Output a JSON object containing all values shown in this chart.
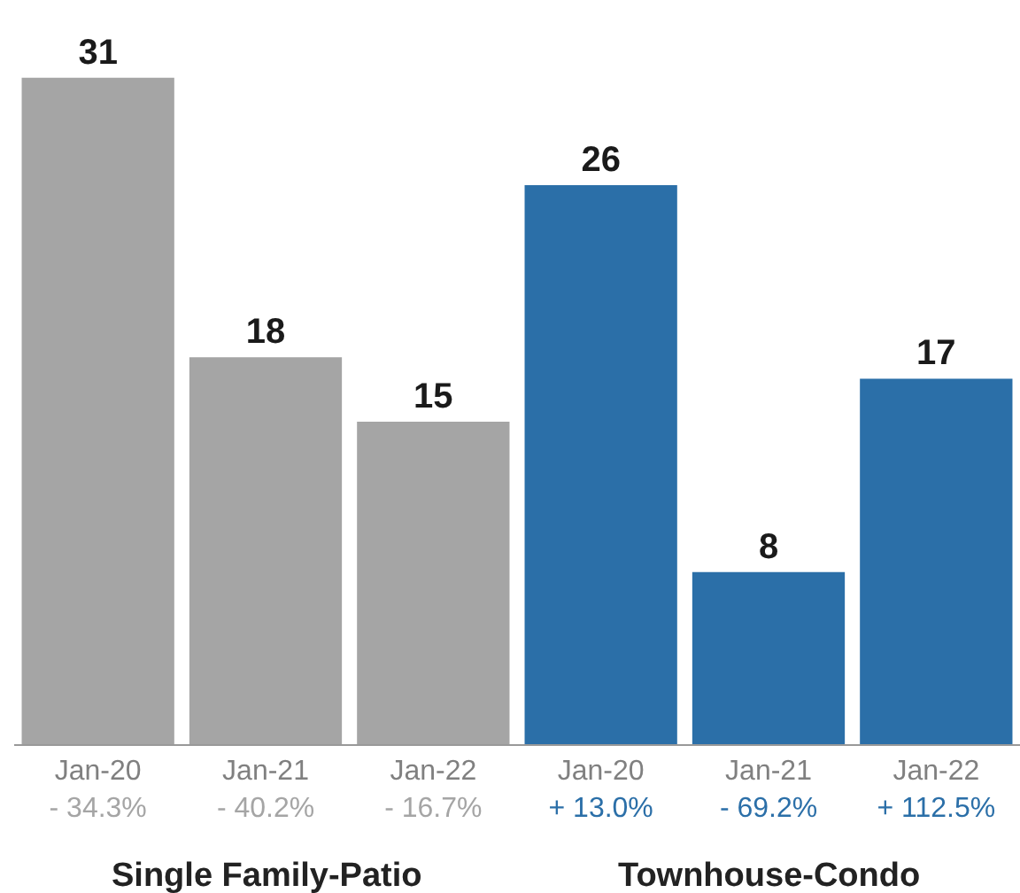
{
  "chart_data": {
    "type": "bar",
    "categories": [
      "Jan-20\n- 34.3%",
      "Jan-21\n- 40.2%",
      "Jan-22\n- 16.7%",
      "Jan-20\n+ 13.0%",
      "Jan-21\n- 69.2%",
      "Jan-22\n+ 112.5%"
    ],
    "series": [
      {
        "color": "#a5a5a5",
        "values": [
          31,
          18,
          15,
          null,
          null,
          null
        ]
      },
      {
        "color": "#2b6fa8",
        "values": [
          null,
          null,
          null,
          26,
          8,
          17
        ]
      }
    ],
    "annotations": [
      "Single Family-Patio",
      "Townhouse-Condo"
    ],
    "data_labels": true
  }
}
